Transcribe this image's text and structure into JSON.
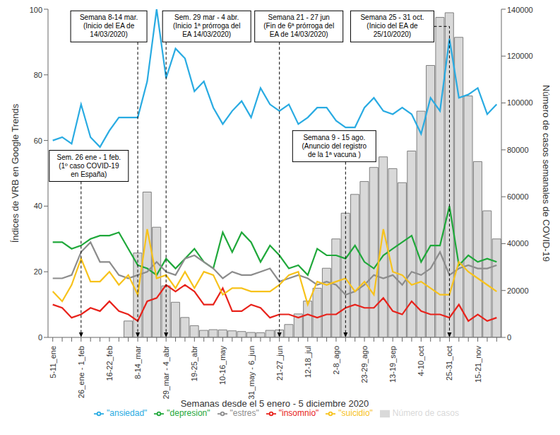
{
  "chart_data": {
    "type": "combo",
    "x_label": "Semanas desde el 5 enero - 5 diciembre 2020",
    "y_label": "Índices de VRB en Google Trends",
    "y2_label": "Número de casos semanales de COVID-19",
    "categories": [
      "5-11_ene",
      null,
      null,
      "26_ene - 1_feb",
      null,
      null,
      "16-22_feb",
      null,
      null,
      "8-14_mar",
      null,
      null,
      "29_mar - 4_abr",
      null,
      null,
      "19-25_abr",
      null,
      null,
      "10-16_may",
      null,
      null,
      "31_may - 6_jun",
      null,
      null,
      "21-27_jun",
      null,
      null,
      "12-18_jul",
      null,
      null,
      "2-8_ago",
      null,
      null,
      "23-29_ago",
      null,
      null,
      "13-19_sep",
      null,
      null,
      "4-10_oct",
      null,
      null,
      "25-31_oct",
      null,
      null,
      "15-21_nov",
      null,
      null
    ],
    "ylim": [
      0,
      100
    ],
    "yticks": [
      0,
      20,
      40,
      60,
      80,
      100
    ],
    "y2lim": [
      0,
      140000
    ],
    "y2ticks": [
      0,
      20000,
      40000,
      60000,
      80000,
      100000,
      120000,
      140000
    ],
    "grid": false,
    "legend": "bottom",
    "series": [
      {
        "name": "Número de casos",
        "type": "bar",
        "axis": "y2",
        "color": "#d9d9d9",
        "values": [
          0,
          0,
          0,
          0,
          0,
          0,
          0,
          0,
          7000,
          36000,
          62000,
          47000,
          22000,
          15000,
          8500,
          5000,
          3000,
          3300,
          3200,
          2800,
          2500,
          2100,
          2000,
          3000,
          3200,
          5500,
          10000,
          15500,
          21000,
          29500,
          42000,
          53000,
          61000,
          66500,
          72500,
          77000,
          72000,
          66000,
          79500,
          96500,
          116000,
          136500,
          138500,
          128000,
          103000,
          75000,
          54000,
          42000
        ]
      },
      {
        "name": "\"ansiedad\"",
        "type": "line",
        "color": "#29abe2",
        "values": [
          60,
          61,
          59,
          71,
          61,
          58,
          63,
          67,
          67,
          67,
          78,
          100,
          79,
          88,
          85,
          75,
          78,
          70,
          65,
          69,
          72,
          67,
          76,
          71,
          69,
          71,
          65,
          67,
          70,
          70,
          66,
          64,
          64,
          70,
          73,
          69,
          68,
          70,
          68,
          62,
          73,
          69,
          91,
          73,
          74,
          76,
          68,
          71
        ]
      },
      {
        "name": "\"depresion\"",
        "type": "line",
        "color": "#1fa83a",
        "values": [
          29,
          29,
          27,
          28,
          30,
          31,
          31,
          32,
          27,
          22,
          21,
          19,
          24,
          21,
          24,
          27,
          23,
          21,
          32,
          26,
          32,
          29,
          23,
          28,
          25,
          21,
          22,
          19,
          27,
          25,
          25,
          24,
          28,
          23,
          21,
          25,
          27,
          29,
          31,
          23,
          28,
          28,
          40,
          22,
          25,
          23,
          24,
          23
        ]
      },
      {
        "name": "\"estres\"",
        "type": "line",
        "color": "#8c8c8c",
        "values": [
          18,
          18,
          19,
          26,
          29,
          23,
          23,
          19,
          18,
          19,
          20,
          23,
          20,
          19,
          24,
          25,
          23,
          21,
          18,
          20,
          19,
          19,
          20,
          21,
          17,
          18,
          19,
          18,
          16,
          17,
          16,
          13,
          14,
          16,
          19,
          18,
          19,
          16,
          20,
          19,
          21,
          26,
          19,
          21,
          22,
          21,
          21,
          22
        ]
      },
      {
        "name": "\"insomnio\"",
        "type": "line",
        "color": "#e8221b",
        "values": [
          10,
          9,
          6,
          7,
          9,
          8,
          11,
          8,
          7,
          5,
          11,
          12,
          16,
          14,
          16,
          14,
          10,
          10,
          15,
          8,
          8,
          10,
          9,
          6,
          7,
          7,
          6,
          7,
          6,
          7,
          7,
          9,
          10,
          9,
          9,
          12,
          8,
          7,
          11,
          8,
          7,
          7,
          6,
          10,
          5,
          7,
          5,
          6
        ]
      },
      {
        "name": "\"suicidio\"",
        "type": "line",
        "color": "#f7c21b",
        "values": [
          14,
          11,
          16,
          24,
          17,
          17,
          20,
          16,
          19,
          13,
          33,
          18,
          19,
          15,
          20,
          15,
          20,
          19,
          13,
          15,
          15,
          14,
          14,
          14,
          16,
          19,
          20,
          10,
          17,
          16,
          17,
          18,
          14,
          17,
          13,
          33,
          20,
          19,
          16,
          17,
          15,
          13,
          13,
          23,
          20,
          18,
          16,
          14
        ]
      }
    ],
    "annotations": [
      {
        "index": 3,
        "text": [
          "Sem. 26 ene - 1 feb.",
          "(1º caso COVID-19",
          "en España)"
        ]
      },
      {
        "index": 9,
        "text": [
          "Semana 8-14 mar.",
          "(Inicio del EA de",
          "14/03/2020)"
        ]
      },
      {
        "index": 12,
        "text": [
          "Sem. 29 mar - 4 abr.",
          "(Inicio 1ª prórroga del",
          "EA 14/03/2020)"
        ]
      },
      {
        "index": 24,
        "text": [
          "Semana 21 - 27 jun",
          "(Fin de 6ª prórroga del",
          "EA de 14/03/2020)"
        ]
      },
      {
        "index": 31,
        "text": [
          "Semana 9 - 15 ago.",
          "(Anuncio del registro",
          "de la 1ª vacuna )"
        ]
      },
      {
        "index": 42,
        "text": [
          "Semana 25 - 31 oct.",
          "(Inicio del EA de",
          "25/10/2020)"
        ]
      }
    ]
  }
}
